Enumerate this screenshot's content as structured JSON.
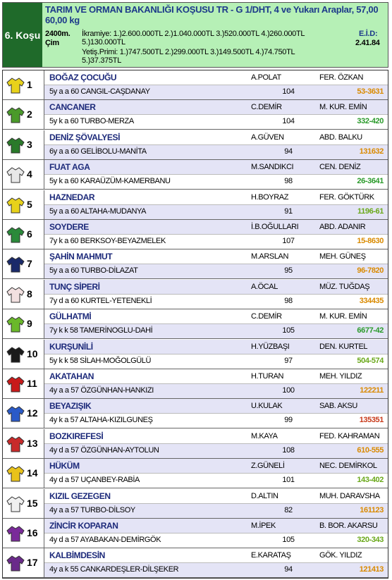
{
  "header": {
    "race": "6. Koşu",
    "title": "TARIM VE ORMAN BAKANLIĞI KOŞUSU TR - G 1/DHT, 4 ve Yukarı Araplar, 57,00 60,00 kg",
    "distance": "2400m.",
    "surface": "Çim",
    "prize": "İkramiye: 1.)2.600.000TL 2.)1.040.000TL 3.)520.000TL 4.)260.000TL 5.)130.000TL",
    "breeder_prize": "Yetiş.Primi: 1.)747.500TL 2.)299.000TL 3.)149.500TL 4.)74.750TL 5.)37.375TL",
    "eid_label": "E.İ.D:",
    "eid": "2.41.84"
  },
  "horses": [
    {
      "no": 1,
      "name": "BOĞAZ ÇOCUĞU",
      "jockey": "A.POLAT",
      "trainer": "FER. ÖZKAN",
      "info": "5y a a 60 CANGIL-CAŞDANAY",
      "weight": 104,
      "form": "53-3631"
    },
    {
      "no": 2,
      "name": "CANCANER",
      "jockey": "C.DEMİR",
      "trainer": "M. KUR. EMİN",
      "info": "5y k a 60 TURBO-MERZA",
      "weight": 104,
      "form": "332-420"
    },
    {
      "no": 3,
      "name": "DENİZ ŞÖVALYESİ",
      "jockey": "A.GÜVEN",
      "trainer": "ABD. BALKU",
      "info": "6y a a 60 GELİBOLU-MANİTA",
      "weight": 94,
      "form": "131632"
    },
    {
      "no": 4,
      "name": "FUAT AGA",
      "jockey": "M.SANDIKCI",
      "trainer": "CEN. DENİZ",
      "info": "5y k a 60 KARAÜZÜM-KAMERBANU",
      "weight": 98,
      "form": "26-3641"
    },
    {
      "no": 5,
      "name": "HAZNEDAR",
      "jockey": "H.BOYRAZ",
      "trainer": "FER. GÖKTÜRK",
      "info": "5y a a 60 ALTAHA-MUDANYA",
      "weight": 91,
      "form": "1196-61"
    },
    {
      "no": 6,
      "name": "SOYDERE",
      "jockey": "İ.B.OĞULLARI",
      "trainer": "ABD. ADANIR",
      "info": "7y k a 60 BERKSOY-BEYAZMELEK",
      "weight": 107,
      "form": "15-8630"
    },
    {
      "no": 7,
      "name": "ŞAHİN MAHMUT",
      "jockey": "M.ARSLAN",
      "trainer": "MEH. GÜNEŞ",
      "info": "5y a a 60 TURBO-DİLAZAT",
      "weight": 95,
      "form": "96-7820"
    },
    {
      "no": 8,
      "name": "TUNÇ SİPERİ",
      "jockey": "A.ÖCAL",
      "trainer": "MÜZ. TUĞDAŞ",
      "info": "7y d a 60 KURTEL-YETENEKLİ",
      "weight": 98,
      "form": "334435"
    },
    {
      "no": 9,
      "name": "GÜLHATMİ",
      "jockey": "C.DEMİR",
      "trainer": "M. KUR. EMİN",
      "info": "7y k k 58 TAMERİNOGLU-DAHİ",
      "weight": 105,
      "form": "6677-42"
    },
    {
      "no": 10,
      "name": "KURŞUNİLİ",
      "jockey": "H.YÜZBAŞI",
      "trainer": "DEN. KURTEL",
      "info": "5y k k 58 SİLAH-MOĞOLGÜLÜ",
      "weight": 97,
      "form": "504-574"
    },
    {
      "no": 11,
      "name": "AKATAHAN",
      "jockey": "H.TURAN",
      "trainer": "MEH. YILDIZ",
      "info": "4y a a 57 ÖZGÜNHAN-HANKIZI",
      "weight": 100,
      "form": "122211"
    },
    {
      "no": 12,
      "name": "BEYAZIŞIK",
      "jockey": "U.KULAK",
      "trainer": "SAB. AKSU",
      "info": "4y k a 57 ALTAHA-KIZILGUNEŞ",
      "weight": 99,
      "form": "135351"
    },
    {
      "no": 13,
      "name": "BOZKIREFESİ",
      "jockey": "M.KAYA",
      "trainer": "FED. KAHRAMAN",
      "info": "4y d a 57 ÖZGÜNHAN-AYTOLUN",
      "weight": 108,
      "form": "610-555"
    },
    {
      "no": 14,
      "name": "HÜKÜM",
      "jockey": "Z.GÜNELİ",
      "trainer": "NEC. DEMİRKOL",
      "info": "4y d a 57 UÇANBEY-RABİA",
      "weight": 101,
      "form": "143-402"
    },
    {
      "no": 15,
      "name": "KIZIL GEZEGEN",
      "jockey": "D.ALTIN",
      "trainer": "MUH. DARAVSHA",
      "info": "4y a a 57 TURBO-DİLSOY",
      "weight": 82,
      "form": "161123"
    },
    {
      "no": 16,
      "name": "ZİNCİR KOPARAN",
      "jockey": "M.İPEK",
      "trainer": "B. BOR. AKARSU",
      "info": "4y d a 57 AYABAKAN-DEMİRGÖK",
      "weight": 105,
      "form": "320-343"
    },
    {
      "no": 17,
      "name": "KALBİMDESİN",
      "jockey": "E.KARATAŞ",
      "trainer": "GÖK. YILDIZ",
      "info": "4y a k 55 CANKARDEŞLER-DİLŞEKER",
      "weight": 94,
      "form": "121413"
    }
  ]
}
